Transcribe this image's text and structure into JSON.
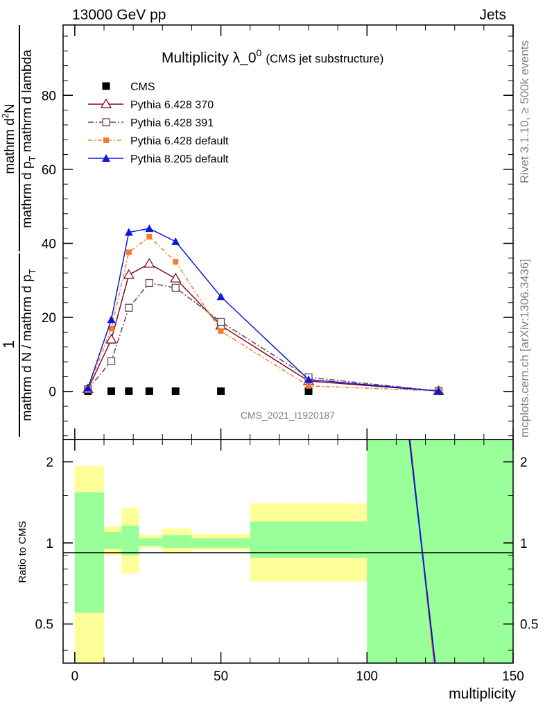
{
  "header": {
    "left": "13000 GeV pp",
    "right": "Jets"
  },
  "side_labels": {
    "rivet": "Rivet 3.1.10, ≥ 500k events",
    "mcplots": "mcplots.cern.ch [arXiv:1306.3436]"
  },
  "colors": {
    "cms": "#000000",
    "p370": "#7f0f1f",
    "p391": "#6b4352",
    "p6def": "#f47c2f",
    "p8def": "#0a18d8",
    "band_inner": "#99ff99",
    "band_outer": "#ffff99"
  },
  "chart_data": [
    {
      "type": "line",
      "title": "Multiplicity λ_0",
      "title_sup": "0",
      "title_suffix": "(CMS jet substructure)",
      "watermark": "CMS_2021_I1920187",
      "ylabel_frac_top": "1",
      "ylabel_frac_den": "mathrm d N / mathrm d p",
      "ylabel_frac_den_sub": "T",
      "ylabel_main": "mathrm d",
      "ylabel_main_sup": "2",
      "ylabel_main_rest": "N",
      "ylabel_den": "mathrm d p",
      "ylabel_den_sub": "T",
      "ylabel_den_rest": " mathrm d lambda",
      "xlim": [
        -4,
        150
      ],
      "ylim": [
        -13,
        99
      ],
      "yticks": [
        0,
        20,
        40,
        60,
        80
      ],
      "yticklabels": [
        "0",
        "20",
        "40",
        "60",
        "80"
      ],
      "series": [
        {
          "name": "CMS",
          "style": "square-filled",
          "x": [
            4.5,
            12.5,
            18.5,
            25.5,
            34.5,
            50,
            80,
            124.5
          ],
          "y": [
            0.05,
            0.05,
            0.05,
            0.05,
            0.05,
            0.05,
            0.05,
            0.05
          ]
        },
        {
          "name": "Pythia 6.428 370",
          "style": "triangle-open",
          "x": [
            4.5,
            12.5,
            18.5,
            25.5,
            34.5,
            50,
            80,
            124.5
          ],
          "y": [
            0.6,
            14,
            31.5,
            34.5,
            30.5,
            17.8,
            2.8,
            0.1
          ]
        },
        {
          "name": "Pythia 6.428 391",
          "style": "square-open",
          "x": [
            4.5,
            12.5,
            18.5,
            25.5,
            34.5,
            50,
            80,
            124.5
          ],
          "y": [
            0.6,
            8.2,
            22.6,
            29.3,
            28.0,
            18.8,
            3.8,
            0.1
          ]
        },
        {
          "name": "Pythia 6.428 default",
          "style": "square-filled-small",
          "x": [
            4.5,
            12.5,
            18.5,
            25.5,
            34.5,
            50,
            80,
            124.5
          ],
          "y": [
            0.8,
            17.0,
            37.6,
            41.8,
            35.0,
            16.3,
            1.5,
            0.1
          ]
        },
        {
          "name": "Pythia 8.205 default",
          "style": "triangle-filled",
          "x": [
            4.5,
            12.5,
            18.5,
            25.5,
            34.5,
            50,
            80,
            124.5
          ],
          "y": [
            0.9,
            19.4,
            43.0,
            44.0,
            40.5,
            25.6,
            3.2,
            0.1
          ]
        }
      ]
    },
    {
      "type": "area",
      "ylabel": "Ratio to CMS",
      "xlabel": "multiplicity",
      "xlim": [
        -4,
        150
      ],
      "ylim": [
        0.358,
        2.42
      ],
      "yticks": [
        0.5,
        1,
        2
      ],
      "yticklabels": [
        "0.5",
        "1",
        "2"
      ],
      "xticks": [
        0,
        50,
        100,
        150
      ],
      "xticklabels": [
        "0",
        "50",
        "100",
        "150"
      ],
      "bands": [
        {
          "x0": 0,
          "x1": 10,
          "outer": [
            0.358,
            1.93
          ],
          "inner": [
            0.55,
            1.54
          ]
        },
        {
          "x0": 10,
          "x1": 16,
          "outer": [
            0.9,
            1.15
          ],
          "inner": [
            0.95,
            1.1
          ]
        },
        {
          "x0": 16,
          "x1": 22,
          "outer": [
            0.77,
            1.35
          ],
          "inner": [
            0.9,
            1.16
          ]
        },
        {
          "x0": 22,
          "x1": 30,
          "outer": [
            0.96,
            1.07
          ],
          "inner": [
            0.975,
            1.04
          ]
        },
        {
          "x0": 30,
          "x1": 40,
          "outer": [
            0.92,
            1.13
          ],
          "inner": [
            0.96,
            1.07
          ]
        },
        {
          "x0": 40,
          "x1": 60,
          "outer": [
            0.94,
            1.08
          ],
          "inner": [
            0.96,
            1.04
          ]
        },
        {
          "x0": 60,
          "x1": 100,
          "outer": [
            0.72,
            1.4
          ],
          "inner": [
            0.88,
            1.2
          ]
        },
        {
          "x0": 100,
          "x1": 150,
          "outer": [
            0.358,
            2.42
          ],
          "inner": [
            0.358,
            2.42
          ]
        }
      ],
      "ratio_lines": [
        {
          "name": "Pythia 6.428 default",
          "x": [
            114.8,
            122.9
          ],
          "y": [
            2.42,
            0.358
          ]
        },
        {
          "name": "Pythia 6.428 370",
          "x": [
            114.6,
            123.3
          ],
          "y": [
            2.42,
            0.358
          ]
        },
        {
          "name": "Pythia 8.205 default",
          "x": [
            114.5,
            123.3
          ],
          "y": [
            2.42,
            0.358
          ]
        }
      ]
    }
  ]
}
